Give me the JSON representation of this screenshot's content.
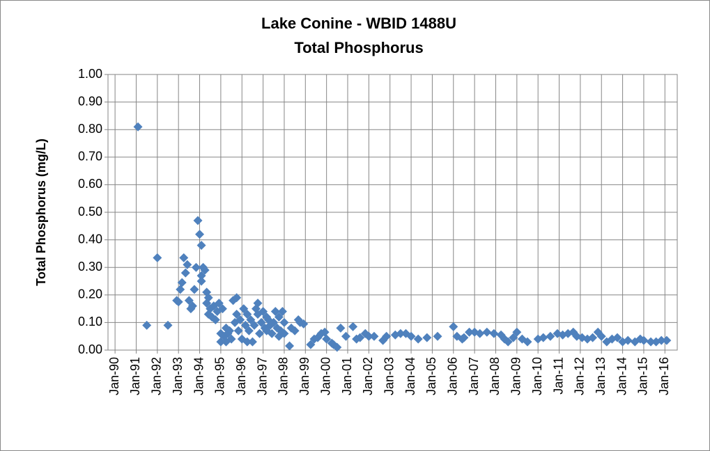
{
  "chart_data": {
    "type": "scatter",
    "title": "Lake Conine - WBID 1488U",
    "subtitle": "Total Phosphorus",
    "y_label": "Total Phosphorus (mg/L)",
    "color": "#4f81bd",
    "grid": true,
    "xlim": [
      "1989-09",
      "2016-08"
    ],
    "ylim": [
      0,
      1
    ],
    "yticks": [
      {
        "value": 0,
        "label": "0.00"
      },
      {
        "value": 0.1,
        "label": "0.10"
      },
      {
        "value": 0.2,
        "label": "0.20"
      },
      {
        "value": 0.3,
        "label": "0.30"
      },
      {
        "value": 0.4,
        "label": "0.40"
      },
      {
        "value": 0.5,
        "label": "0.50"
      },
      {
        "value": 0.6,
        "label": "0.60"
      },
      {
        "value": 0.7,
        "label": "0.70"
      },
      {
        "value": 0.8,
        "label": "0.80"
      },
      {
        "value": 0.9,
        "label": "0.90"
      },
      {
        "value": 1,
        "label": "1.00"
      }
    ],
    "xticks": [
      {
        "value": "1990-01",
        "label": "Jan-90"
      },
      {
        "value": "1991-01",
        "label": "Jan-91"
      },
      {
        "value": "1992-01",
        "label": "Jan-92"
      },
      {
        "value": "1993-01",
        "label": "Jan-93"
      },
      {
        "value": "1994-01",
        "label": "Jan-94"
      },
      {
        "value": "1995-01",
        "label": "Jan-95"
      },
      {
        "value": "1996-01",
        "label": "Jan-96"
      },
      {
        "value": "1997-01",
        "label": "Jan-97"
      },
      {
        "value": "1998-01",
        "label": "Jan-98"
      },
      {
        "value": "1999-01",
        "label": "Jan-99"
      },
      {
        "value": "2000-01",
        "label": "Jan-00"
      },
      {
        "value": "2001-01",
        "label": "Jan-01"
      },
      {
        "value": "2002-01",
        "label": "Jan-02"
      },
      {
        "value": "2003-01",
        "label": "Jan-03"
      },
      {
        "value": "2004-01",
        "label": "Jan-04"
      },
      {
        "value": "2005-01",
        "label": "Jan-05"
      },
      {
        "value": "2006-01",
        "label": "Jan-06"
      },
      {
        "value": "2007-01",
        "label": "Jan-07"
      },
      {
        "value": "2008-01",
        "label": "Jan-08"
      },
      {
        "value": "2009-01",
        "label": "Jan-09"
      },
      {
        "value": "2010-01",
        "label": "Jan-10"
      },
      {
        "value": "2011-01",
        "label": "Jan-11"
      },
      {
        "value": "2012-01",
        "label": "Jan-12"
      },
      {
        "value": "2013-01",
        "label": "Jan-13"
      },
      {
        "value": "2014-01",
        "label": "Jan-14"
      },
      {
        "value": "2015-01",
        "label": "Jan-15"
      },
      {
        "value": "2016-01",
        "label": "Jan-16"
      }
    ],
    "x": [
      "1991-02",
      "1991-07",
      "1992-01",
      "1992-07",
      "1992-12",
      "1993-01",
      "1993-02",
      "1993-03",
      "1993-04",
      "1993-05",
      "1993-06",
      "1993-07",
      "1993-08",
      "1993-09",
      "1993-10",
      "1993-11",
      "1993-12",
      "1994-01",
      "1994-02",
      "1994-02",
      "1994-02",
      "1994-03",
      "1994-04",
      "1994-05",
      "1994-05",
      "1994-06",
      "1994-06",
      "1994-07",
      "1994-08",
      "1994-09",
      "1994-10",
      "1994-11",
      "1994-12",
      "1995-01",
      "1995-01",
      "1995-02",
      "1995-03",
      "1995-04",
      "1995-04",
      "1995-05",
      "1995-06",
      "1995-07",
      "1995-08",
      "1995-09",
      "1995-10",
      "1995-10",
      "1995-11",
      "1995-12",
      "1996-01",
      "1996-02",
      "1996-03",
      "1996-04",
      "1996-04",
      "1996-05",
      "1996-06",
      "1996-07",
      "1996-08",
      "1996-09",
      "1996-10",
      "1996-10",
      "1996-11",
      "1996-12",
      "1997-01",
      "1997-02",
      "1997-03",
      "1997-03",
      "1997-04",
      "1997-05",
      "1997-06",
      "1997-07",
      "1997-08",
      "1997-09",
      "1997-10",
      "1997-10",
      "1997-11",
      "1997-12",
      "1998-01",
      "1998-01",
      "1998-04",
      "1998-05",
      "1998-07",
      "1998-09",
      "1998-10",
      "1998-12",
      "1999-04",
      "1999-06",
      "1999-08",
      "1999-10",
      "1999-12",
      "2000-01",
      "2000-04",
      "2000-05",
      "2000-07",
      "2000-09",
      "2000-12",
      "2001-04",
      "2001-06",
      "2001-08",
      "2001-11",
      "2002-01",
      "2002-04",
      "2002-09",
      "2002-11",
      "2003-04",
      "2003-07",
      "2003-10",
      "2004-01",
      "2004-05",
      "2004-10",
      "2005-04",
      "2006-01",
      "2006-03",
      "2006-06",
      "2006-07",
      "2006-10",
      "2007-01",
      "2007-04",
      "2007-08",
      "2007-12",
      "2008-04",
      "2008-06",
      "2008-08",
      "2008-11",
      "2009-01",
      "2009-04",
      "2009-07",
      "2010-01",
      "2010-04",
      "2010-08",
      "2010-12",
      "2011-03",
      "2011-06",
      "2011-09",
      "2011-11",
      "2012-02",
      "2012-05",
      "2012-08",
      "2012-11",
      "2013-01",
      "2013-04",
      "2013-07",
      "2013-10",
      "2014-01",
      "2014-04",
      "2014-08",
      "2014-11",
      "2015-01",
      "2015-05",
      "2015-08",
      "2015-11",
      "2016-02"
    ],
    "values": [
      0.81,
      0.09,
      0.335,
      0.09,
      0.18,
      0.175,
      0.22,
      0.245,
      0.335,
      0.28,
      0.31,
      0.18,
      0.15,
      0.16,
      0.22,
      0.3,
      0.47,
      0.42,
      0.38,
      0.27,
      0.25,
      0.3,
      0.29,
      0.21,
      0.17,
      0.13,
      0.19,
      0.15,
      0.12,
      0.16,
      0.11,
      0.14,
      0.17,
      0.06,
      0.03,
      0.15,
      0.05,
      0.08,
      0.03,
      0.06,
      0.07,
      0.04,
      0.18,
      0.1,
      0.19,
      0.13,
      0.07,
      0.11,
      0.04,
      0.15,
      0.09,
      0.13,
      0.03,
      0.07,
      0.11,
      0.03,
      0.09,
      0.15,
      0.17,
      0.13,
      0.06,
      0.1,
      0.14,
      0.08,
      0.12,
      0.07,
      0.11,
      0.09,
      0.06,
      0.1,
      0.14,
      0.08,
      0.12,
      0.05,
      0.07,
      0.14,
      0.1,
      0.06,
      0.015,
      0.08,
      0.07,
      0.11,
      0.1,
      0.095,
      0.02,
      0.04,
      0.045,
      0.06,
      0.065,
      0.04,
      0.025,
      0.02,
      0.01,
      0.08,
      0.05,
      0.085,
      0.04,
      0.045,
      0.06,
      0.05,
      0.05,
      0.035,
      0.05,
      0.055,
      0.06,
      0.06,
      0.05,
      0.04,
      0.045,
      0.05,
      0.085,
      0.05,
      0.04,
      0.045,
      0.065,
      0.065,
      0.06,
      0.065,
      0.06,
      0.055,
      0.04,
      0.03,
      0.045,
      0.065,
      0.04,
      0.03,
      0.04,
      0.045,
      0.05,
      0.06,
      0.055,
      0.06,
      0.065,
      0.05,
      0.045,
      0.04,
      0.045,
      0.065,
      0.05,
      0.03,
      0.04,
      0.045,
      0.03,
      0.035,
      0.03,
      0.04,
      0.035,
      0.03,
      0.03,
      0.035,
      0.035
    ]
  }
}
